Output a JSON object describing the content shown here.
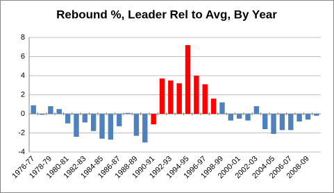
{
  "chart_data": {
    "type": "bar",
    "title": "Rebound %, Leader Rel to Avg, By Year",
    "categories": [
      "1976-77",
      null,
      "1978-79",
      null,
      "1980-81",
      null,
      "1982-83",
      null,
      "1984-85",
      null,
      "1986-87",
      null,
      "1988-89",
      null,
      "1990-91",
      null,
      "1992-93",
      null,
      "1994-95",
      null,
      "1996-97",
      null,
      "1998-99",
      null,
      "2000-01",
      null,
      "2002-03",
      null,
      "2004-05",
      null,
      "2006-07",
      null,
      "2008-09",
      null
    ],
    "values": [
      0.9,
      -0.1,
      0.8,
      0.5,
      -1.0,
      -2.4,
      -0.9,
      -1.8,
      -2.6,
      -2.7,
      -1.3,
      0.1,
      -2.3,
      -3.0,
      -1.1,
      3.7,
      3.5,
      3.2,
      7.2,
      4.0,
      3.1,
      1.6,
      1.2,
      -0.7,
      -0.5,
      -0.7,
      0.8,
      -1.6,
      -2.1,
      -1.7,
      -1.7,
      -0.8,
      -0.6,
      -0.2
    ],
    "colors": [
      "#4f81bd",
      "#4f81bd",
      "#4f81bd",
      "#4f81bd",
      "#4f81bd",
      "#4f81bd",
      "#4f81bd",
      "#4f81bd",
      "#4f81bd",
      "#4f81bd",
      "#4f81bd",
      "#4f81bd",
      "#4f81bd",
      "#4f81bd",
      "#ff0000",
      "#ff0000",
      "#ff0000",
      "#ff0000",
      "#ff0000",
      "#ff0000",
      "#ff0000",
      "#ff0000",
      "#4f81bd",
      "#4f81bd",
      "#4f81bd",
      "#4f81bd",
      "#4f81bd",
      "#4f81bd",
      "#4f81bd",
      "#4f81bd",
      "#4f81bd",
      "#4f81bd",
      "#4f81bd",
      "#4f81bd"
    ],
    "ylim": [
      -4,
      8
    ],
    "yticks": [
      -4,
      -2,
      0,
      2,
      4,
      6,
      8
    ],
    "grid": true
  }
}
